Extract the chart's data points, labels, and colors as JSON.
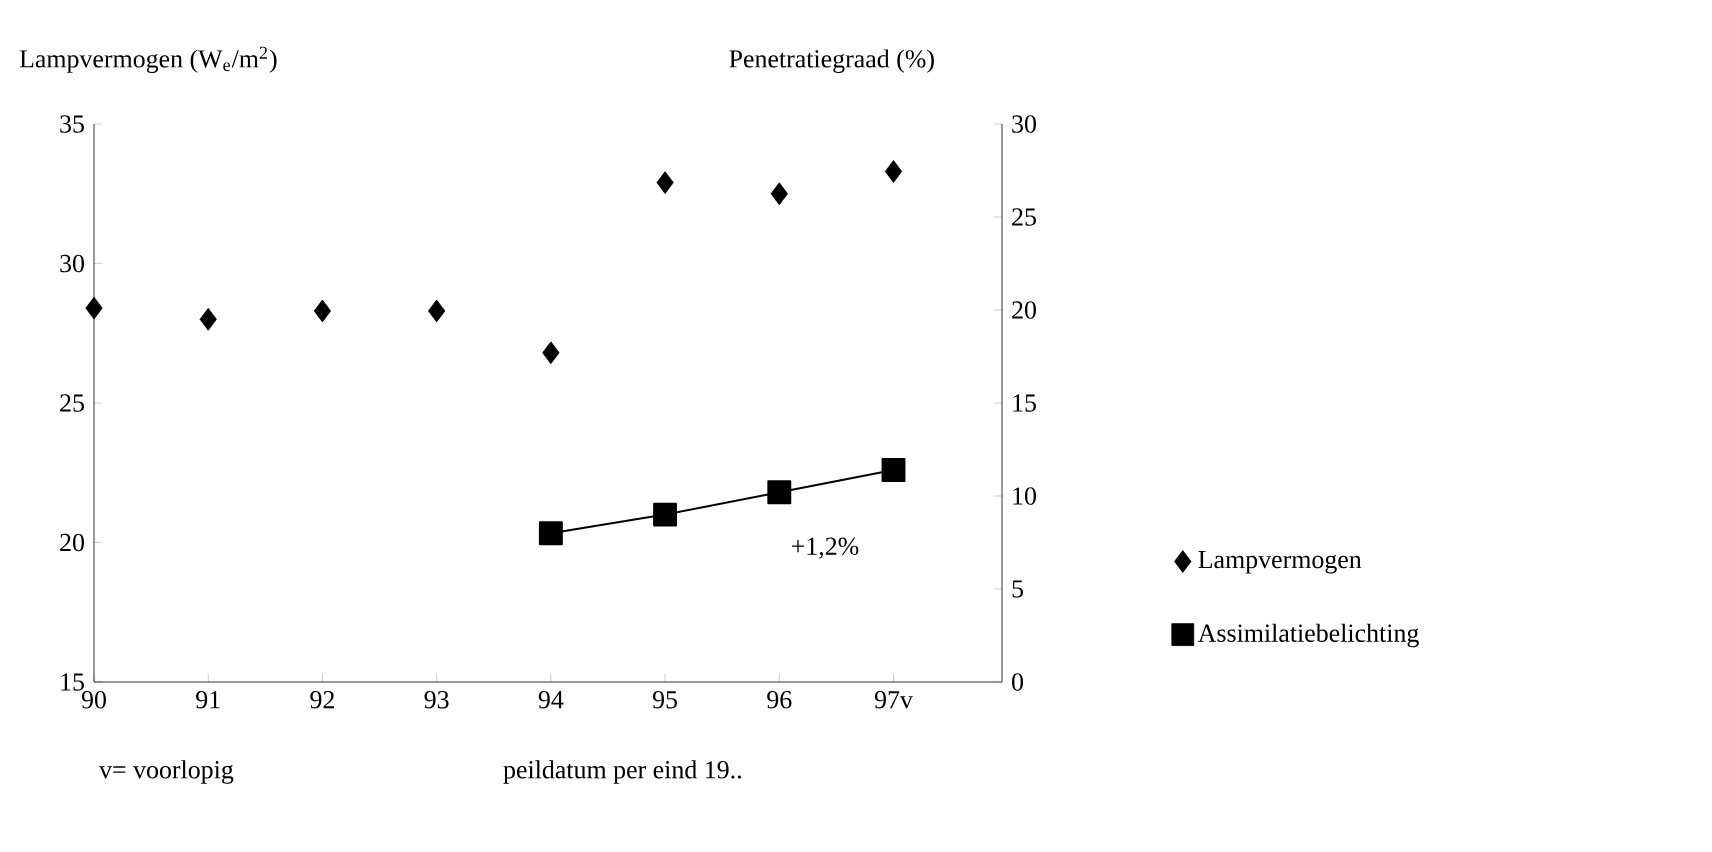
{
  "chart_data": {
    "type": "scatter",
    "ylabel": "Lampvermogen (W$_{e}$/m$^{2}$)",
    "y2label": "Penetratiegraad (%)",
    "categories": [
      "90",
      "91",
      "92",
      "93",
      "94",
      "95",
      "96",
      "97v"
    ],
    "series": [
      {
        "name": "Lampvermogen",
        "type": "scatter",
        "marker": "diamond",
        "color": "#000000",
        "values": [
          28.4,
          28.0,
          28.3,
          28.3,
          26.8,
          32.9,
          32.5,
          33.3
        ]
      },
      {
        "name": "Assimilatiebelichting",
        "type": "line",
        "marker": "square",
        "line_style": "solid",
        "axis": "y2",
        "color": "#000000",
        "values": [
          null,
          null,
          null,
          null,
          8.0,
          9.0,
          10.2,
          11.4
        ]
      }
    ],
    "ylim": [
      15,
      35
    ],
    "yticks": [
      15,
      20,
      25,
      30,
      35
    ],
    "y2lim": [
      0,
      30
    ],
    "y2ticks": [
      0,
      5,
      10,
      15,
      20,
      25,
      30
    ],
    "legend": "right",
    "grid": false,
    "annotations": [
      "+1,2%",
      "v= voorlopig",
      "peildatum per eind 19.."
    ]
  }
}
